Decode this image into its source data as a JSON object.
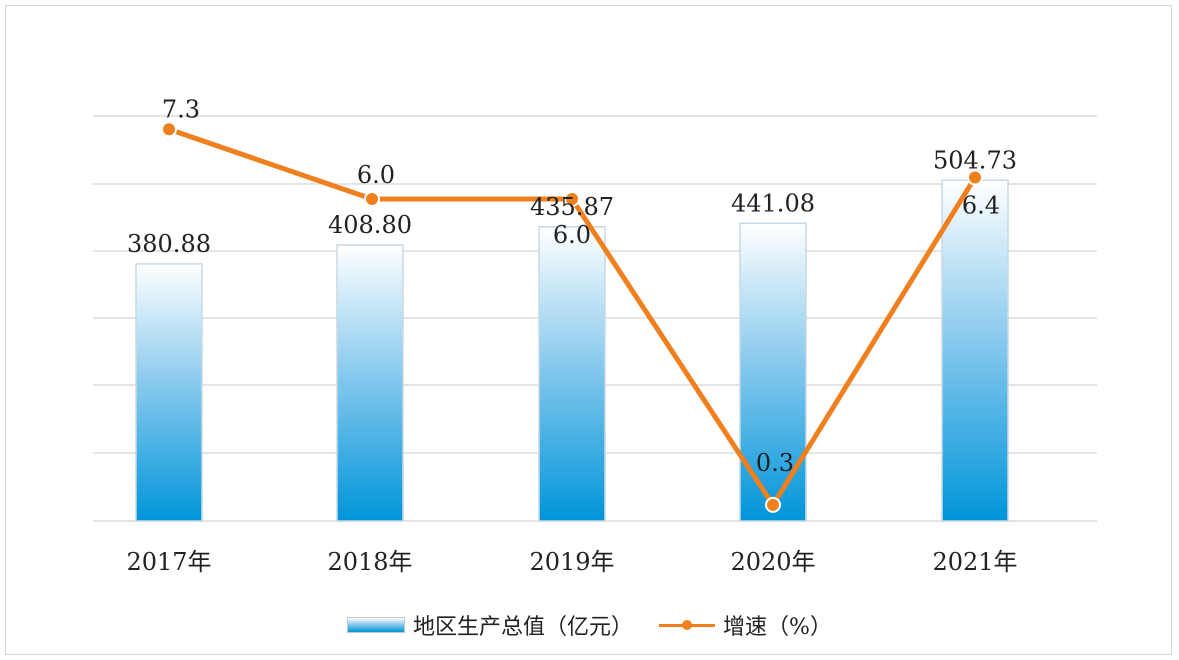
{
  "chart_data": {
    "type": "bar+line",
    "categories": [
      "2017年",
      "2018年",
      "2019年",
      "2020年",
      "2021年"
    ],
    "series": [
      {
        "name": "地区生产总值（亿元）",
        "type": "bar",
        "values": [
          380.88,
          408.8,
          435.87,
          441.08,
          504.73
        ],
        "labels": [
          "380.88",
          "408.80",
          "435.87",
          "441.08",
          "504.73"
        ],
        "color": "#0095d9"
      },
      {
        "name": "增速（%）",
        "type": "line",
        "values": [
          7.3,
          6.0,
          6.0,
          0.3,
          6.4
        ],
        "labels": [
          "7.3",
          "6.0",
          "6.0",
          "0.3",
          "6.4"
        ],
        "color": "#f07f1e"
      }
    ],
    "grid": true,
    "legend_position": "bottom"
  }
}
